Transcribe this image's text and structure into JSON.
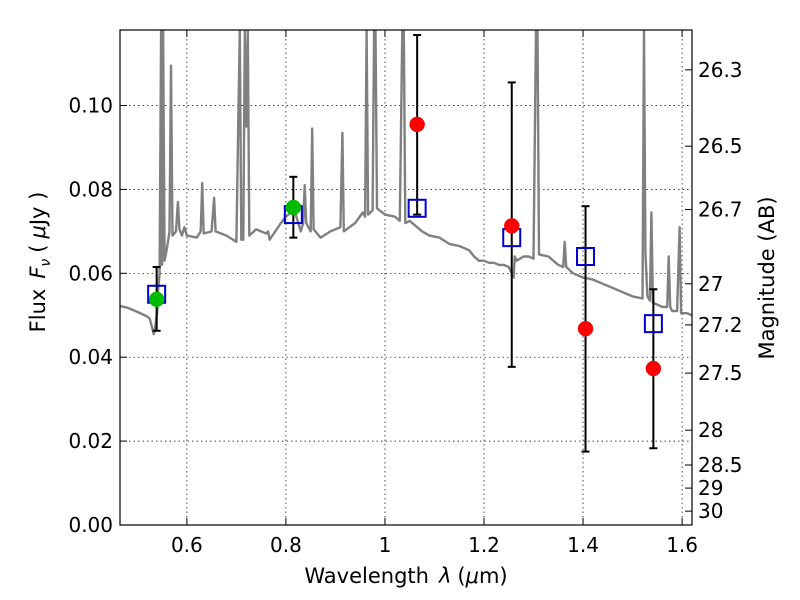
{
  "chart_data": {
    "type": "scatter",
    "xlabel_text": "Wavelength",
    "xlabel_symbol": "λ",
    "xlabel_unit_open": "(",
    "xlabel_unit_mu": "μ",
    "xlabel_unit_rest": "m)",
    "ylabel_text": "Flux",
    "ylabel_symbol": "F",
    "ylabel_subscript": "ν",
    "ylabel_unit_open": "(",
    "ylabel_unit_mu": "μ",
    "ylabel_unit_rest": "Jy )",
    "y2label": "Magnitude (AB)",
    "xlim": [
      0.465,
      1.62
    ],
    "ylim": [
      0.0,
      0.118
    ],
    "grid": true,
    "x_ticks": [
      0.6,
      0.8,
      1.0,
      1.2,
      1.4,
      1.6
    ],
    "x_tick_labels": [
      "0.6",
      "0.8",
      "1",
      "1.2",
      "1.4",
      "1.6"
    ],
    "y_ticks": [
      0.0,
      0.02,
      0.04,
      0.06,
      0.08,
      0.1
    ],
    "y_tick_labels": [
      "0.00",
      "0.02",
      "0.04",
      "0.06",
      "0.08",
      "0.10"
    ],
    "y2_ticks": [
      {
        "label": "26.3",
        "flux": 0.1085
      },
      {
        "label": "26.5",
        "flux": 0.0903
      },
      {
        "label": "26.7",
        "flux": 0.0752
      },
      {
        "label": "27",
        "flux": 0.0575
      },
      {
        "label": "27.2",
        "flux": 0.0477
      },
      {
        "label": "27.5",
        "flux": 0.0362
      },
      {
        "label": "28",
        "flux": 0.0226
      },
      {
        "label": "28.5",
        "flux": 0.0143
      },
      {
        "label": "29",
        "flux": 0.0088
      },
      {
        "label": "30",
        "flux": 0.0033
      }
    ],
    "model_spectrum": {
      "color": "#808080",
      "points": [
        [
          0.465,
          0.0522
        ],
        [
          0.48,
          0.0518
        ],
        [
          0.5,
          0.0508
        ],
        [
          0.52,
          0.0497
        ],
        [
          0.525,
          0.0492
        ],
        [
          0.53,
          0.047
        ],
        [
          0.533,
          0.0455
        ],
        [
          0.535,
          0.0462
        ],
        [
          0.538,
          0.049
        ],
        [
          0.54,
          0.0505
        ],
        [
          0.542,
          0.056
        ],
        [
          0.545,
          0.06
        ],
        [
          0.548,
          0.118
        ],
        [
          0.55,
          0.062
        ],
        [
          0.552,
          0.118
        ],
        [
          0.555,
          0.063
        ],
        [
          0.56,
          0.066
        ],
        [
          0.565,
          0.07
        ],
        [
          0.568,
          0.1095
        ],
        [
          0.571,
          0.069
        ],
        [
          0.578,
          0.07
        ],
        [
          0.582,
          0.077
        ],
        [
          0.585,
          0.0705
        ],
        [
          0.59,
          0.069
        ],
        [
          0.595,
          0.071
        ],
        [
          0.6,
          0.069
        ],
        [
          0.62,
          0.0685
        ],
        [
          0.628,
          0.07
        ],
        [
          0.631,
          0.0815
        ],
        [
          0.634,
          0.0695
        ],
        [
          0.65,
          0.07
        ],
        [
          0.655,
          0.078
        ],
        [
          0.658,
          0.07
        ],
        [
          0.68,
          0.069
        ],
        [
          0.7,
          0.0675
        ],
        [
          0.704,
          0.098
        ],
        [
          0.707,
          0.118
        ],
        [
          0.71,
          0.068
        ],
        [
          0.714,
          0.068
        ],
        [
          0.717,
          0.118
        ],
        [
          0.72,
          0.095
        ],
        [
          0.723,
          0.118
        ],
        [
          0.726,
          0.069
        ],
        [
          0.74,
          0.0705
        ],
        [
          0.76,
          0.0695
        ],
        [
          0.764,
          0.07
        ],
        [
          0.767,
          0.068
        ],
        [
          0.79,
          0.072
        ],
        [
          0.8,
          0.0735
        ],
        [
          0.81,
          0.0745
        ],
        [
          0.82,
          0.074
        ],
        [
          0.83,
          0.07
        ],
        [
          0.835,
          0.072
        ],
        [
          0.838,
          0.081
        ],
        [
          0.841,
          0.072
        ],
        [
          0.85,
          0.07
        ],
        [
          0.853,
          0.0945
        ],
        [
          0.856,
          0.0705
        ],
        [
          0.87,
          0.0685
        ],
        [
          0.89,
          0.07
        ],
        [
          0.91,
          0.071
        ],
        [
          0.914,
          0.0935
        ],
        [
          0.917,
          0.07
        ],
        [
          0.94,
          0.072
        ],
        [
          0.955,
          0.0745
        ],
        [
          0.96,
          0.0735
        ],
        [
          0.963,
          0.118
        ],
        [
          0.966,
          0.074
        ],
        [
          0.975,
          0.075
        ],
        [
          0.978,
          0.118
        ],
        [
          0.981,
          0.118
        ],
        [
          0.984,
          0.0755
        ],
        [
          1.0,
          0.074
        ],
        [
          1.02,
          0.0735
        ],
        [
          1.03,
          0.0725
        ],
        [
          1.035,
          0.118
        ],
        [
          1.038,
          0.118
        ],
        [
          1.041,
          0.072
        ],
        [
          1.05,
          0.0725
        ],
        [
          1.06,
          0.0715
        ],
        [
          1.075,
          0.07
        ],
        [
          1.09,
          0.069
        ],
        [
          1.11,
          0.0685
        ],
        [
          1.13,
          0.067
        ],
        [
          1.15,
          0.0665
        ],
        [
          1.17,
          0.0655
        ],
        [
          1.18,
          0.064
        ],
        [
          1.19,
          0.063
        ],
        [
          1.2,
          0.063
        ],
        [
          1.21,
          0.0625
        ],
        [
          1.22,
          0.0625
        ],
        [
          1.23,
          0.062
        ],
        [
          1.24,
          0.062
        ],
        [
          1.25,
          0.0615
        ],
        [
          1.26,
          0.059
        ],
        [
          1.262,
          0.064
        ],
        [
          1.266,
          0.063
        ],
        [
          1.28,
          0.064
        ],
        [
          1.29,
          0.064
        ],
        [
          1.3,
          0.0635
        ],
        [
          1.305,
          0.118
        ],
        [
          1.308,
          0.118
        ],
        [
          1.311,
          0.0645
        ],
        [
          1.33,
          0.064
        ],
        [
          1.35,
          0.062
        ],
        [
          1.36,
          0.0615
        ],
        [
          1.363,
          0.0675
        ],
        [
          1.366,
          0.0615
        ],
        [
          1.38,
          0.06
        ],
        [
          1.4,
          0.059
        ],
        [
          1.42,
          0.0585
        ],
        [
          1.44,
          0.0575
        ],
        [
          1.46,
          0.0565
        ],
        [
          1.48,
          0.0555
        ],
        [
          1.5,
          0.0545
        ],
        [
          1.52,
          0.054
        ],
        [
          1.523,
          0.118
        ],
        [
          1.526,
          0.065
        ],
        [
          1.53,
          0.0545
        ],
        [
          1.535,
          0.0535
        ],
        [
          1.538,
          0.0745
        ],
        [
          1.541,
          0.053
        ],
        [
          1.56,
          0.052
        ],
        [
          1.57,
          0.052
        ],
        [
          1.573,
          0.064
        ],
        [
          1.576,
          0.052
        ],
        [
          1.58,
          0.051
        ],
        [
          1.59,
          0.051
        ],
        [
          1.595,
          0.071
        ],
        [
          1.598,
          0.0505
        ],
        [
          1.61,
          0.0505
        ],
        [
          1.62,
          0.05
        ]
      ]
    },
    "series": [
      {
        "marker": "open-square",
        "color": "#0000cc",
        "points": [
          {
            "x": 0.539,
            "y": 0.055
          },
          {
            "x": 0.815,
            "y": 0.074
          },
          {
            "x": 1.065,
            "y": 0.0755
          },
          {
            "x": 1.256,
            "y": 0.0685
          },
          {
            "x": 1.405,
            "y": 0.064
          },
          {
            "x": 1.542,
            "y": 0.048
          }
        ]
      },
      {
        "marker": "filled-circle",
        "color": "#00bb00",
        "points": [
          {
            "x": 0.539,
            "y": 0.0538
          },
          {
            "x": 0.815,
            "y": 0.0757
          }
        ]
      },
      {
        "marker": "filled-circle",
        "color": "#ff0000",
        "points": [
          {
            "x": 1.065,
            "y": 0.0955
          },
          {
            "x": 1.256,
            "y": 0.0713
          },
          {
            "x": 1.405,
            "y": 0.0468
          },
          {
            "x": 1.542,
            "y": 0.0373
          }
        ]
      }
    ],
    "error_bars": [
      {
        "x": 0.539,
        "low": 0.0463,
        "high": 0.0615
      },
      {
        "x": 0.815,
        "low": 0.0685,
        "high": 0.083
      },
      {
        "x": 1.065,
        "low": 0.074,
        "high": 0.1168
      },
      {
        "x": 1.256,
        "low": 0.0377,
        "high": 0.1055
      },
      {
        "x": 1.405,
        "low": 0.0175,
        "high": 0.076
      },
      {
        "x": 1.542,
        "low": 0.0183,
        "high": 0.0562
      }
    ]
  }
}
